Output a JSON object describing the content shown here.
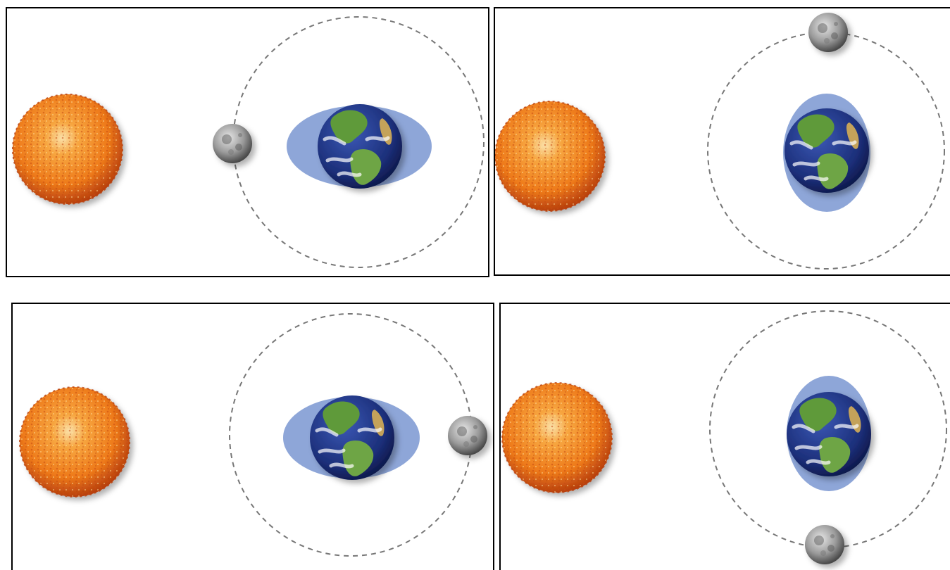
{
  "panels": [
    {
      "name": "panel-new-moon",
      "moon_position": "left"
    },
    {
      "name": "panel-first-quarter",
      "moon_position": "top"
    },
    {
      "name": "panel-full-moon",
      "moon_position": "right"
    },
    {
      "name": "panel-last-quarter",
      "moon_position": "bottom"
    }
  ],
  "colors": {
    "sun_core": "#f59a2a",
    "sun_edge": "#b8400e",
    "earth_ocean": "#1c2f7a",
    "earth_land": "#5f9a3a",
    "tidal_bulge": "#8ea6d8",
    "moon": "#8a8a8a",
    "orbit": "#777777"
  },
  "icons": [
    "sun-icon",
    "earth-icon",
    "moon-icon",
    "tidal-bulge",
    "moon-orbit"
  ]
}
